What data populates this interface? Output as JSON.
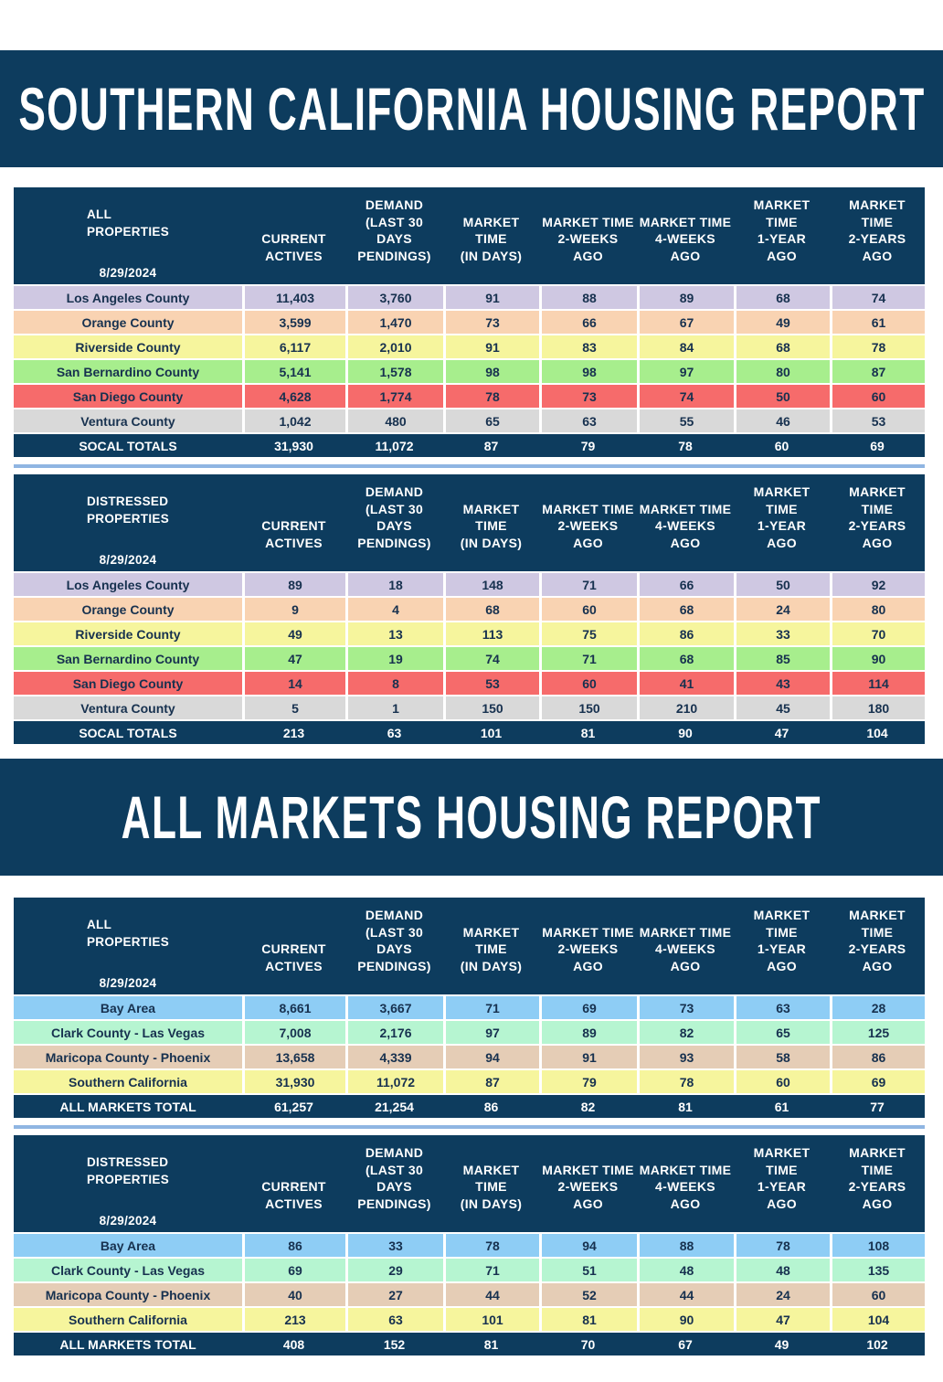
{
  "sections": [
    {
      "title": "SOUTHERN CALIFORNIA HOUSING REPORT",
      "tables": [
        {
          "header": {
            "label": [
              "ALL",
              "PROPERTIES"
            ],
            "date": "8/29/2024",
            "columns": [
              [
                "CURRENT",
                "ACTIVES"
              ],
              [
                "DEMAND",
                "(LAST 30",
                "DAYS",
                "PENDINGS)"
              ],
              [
                "MARKET",
                "TIME",
                "(IN DAYS)"
              ],
              [
                "MARKET TIME",
                "2-WEEKS",
                "AGO"
              ],
              [
                "MARKET TIME",
                "4-WEEKS",
                "AGO"
              ],
              [
                "MARKET",
                "TIME",
                "1-YEAR",
                "AGO"
              ],
              [
                "MARKET",
                "TIME",
                "2-YEARS",
                "AGO"
              ]
            ]
          },
          "rows": [
            {
              "name": "Los Angeles County",
              "color": "#cfc8e2",
              "cells": [
                "11,403",
                "3,760",
                "91",
                "88",
                "89",
                "68",
                "74"
              ]
            },
            {
              "name": "Orange County",
              "color": "#f9d3b2",
              "cells": [
                "3,599",
                "1,470",
                "73",
                "66",
                "67",
                "49",
                "61"
              ]
            },
            {
              "name": "Riverside County",
              "color": "#f6f59d",
              "cells": [
                "6,117",
                "2,010",
                "91",
                "83",
                "84",
                "68",
                "78"
              ]
            },
            {
              "name": "San Bernardino County",
              "color": "#a7ee8d",
              "cells": [
                "5,141",
                "1,578",
                "98",
                "98",
                "97",
                "80",
                "87"
              ]
            },
            {
              "name": "San Diego County",
              "color": "#f66b6b",
              "cells": [
                "4,628",
                "1,774",
                "78",
                "73",
                "74",
                "50",
                "60"
              ]
            },
            {
              "name": "Ventura County",
              "color": "#d9d9d9",
              "cells": [
                "1,042",
                "480",
                "65",
                "63",
                "55",
                "46",
                "53"
              ]
            }
          ],
          "total": {
            "name": "SOCAL TOTALS",
            "cells": [
              "31,930",
              "11,072",
              "87",
              "79",
              "78",
              "60",
              "69"
            ]
          }
        },
        {
          "header": {
            "label": [
              "DISTRESSED",
              "PROPERTIES"
            ],
            "date": "8/29/2024",
            "columns": [
              [
                "CURRENT",
                "ACTIVES"
              ],
              [
                "DEMAND",
                "(LAST 30",
                "DAYS",
                "PENDINGS)"
              ],
              [
                "MARKET",
                "TIME",
                "(IN DAYS)"
              ],
              [
                "MARKET TIME",
                "2-WEEKS",
                "AGO"
              ],
              [
                "MARKET TIME",
                "4-WEEKS",
                "AGO"
              ],
              [
                "MARKET",
                "TIME",
                "1-YEAR",
                "AGO"
              ],
              [
                "MARKET",
                "TIME",
                "2-YEARS",
                "AGO"
              ]
            ]
          },
          "rows": [
            {
              "name": "Los Angeles County",
              "color": "#cfc8e2",
              "cells": [
                "89",
                "18",
                "148",
                "71",
                "66",
                "50",
                "92"
              ]
            },
            {
              "name": "Orange County",
              "color": "#f9d3b2",
              "cells": [
                "9",
                "4",
                "68",
                "60",
                "68",
                "24",
                "80"
              ]
            },
            {
              "name": "Riverside County",
              "color": "#f6f59d",
              "cells": [
                "49",
                "13",
                "113",
                "75",
                "86",
                "33",
                "70"
              ]
            },
            {
              "name": "San Bernardino County",
              "color": "#a7ee8d",
              "cells": [
                "47",
                "19",
                "74",
                "71",
                "68",
                "85",
                "90"
              ]
            },
            {
              "name": "San Diego County",
              "color": "#f66b6b",
              "cells": [
                "14",
                "8",
                "53",
                "60",
                "41",
                "43",
                "114"
              ]
            },
            {
              "name": "Ventura County",
              "color": "#d9d9d9",
              "cells": [
                "5",
                "1",
                "150",
                "150",
                "210",
                "45",
                "180"
              ]
            }
          ],
          "total": {
            "name": "SOCAL TOTALS",
            "cells": [
              "213",
              "63",
              "101",
              "81",
              "90",
              "47",
              "104"
            ]
          }
        }
      ]
    },
    {
      "title": "ALL MARKETS HOUSING REPORT",
      "tables": [
        {
          "header": {
            "label": [
              "ALL",
              "PROPERTIES"
            ],
            "date": "8/29/2024",
            "columns": [
              [
                "CURRENT",
                "ACTIVES"
              ],
              [
                "DEMAND",
                "(LAST 30",
                "DAYS",
                "PENDINGS)"
              ],
              [
                "MARKET",
                "TIME",
                "(IN DAYS)"
              ],
              [
                "MARKET TIME",
                "2-WEEKS",
                "AGO"
              ],
              [
                "MARKET TIME",
                "4-WEEKS",
                "AGO"
              ],
              [
                "MARKET",
                "TIME",
                "1-YEAR",
                "AGO"
              ],
              [
                "MARKET",
                "TIME",
                "2-YEARS",
                "AGO"
              ]
            ]
          },
          "rows": [
            {
              "name": "Bay Area",
              "color": "#8ecdf5",
              "cells": [
                "8,661",
                "3,667",
                "71",
                "69",
                "73",
                "63",
                "28"
              ]
            },
            {
              "name": "Clark County - Las Vegas",
              "color": "#b6f5d1",
              "cells": [
                "7,008",
                "2,176",
                "97",
                "89",
                "82",
                "65",
                "125"
              ]
            },
            {
              "name": "Maricopa County - Phoenix",
              "color": "#e5cdb6",
              "cells": [
                "13,658",
                "4,339",
                "94",
                "91",
                "93",
                "58",
                "86"
              ]
            },
            {
              "name": "Southern California",
              "color": "#f6f59d",
              "cells": [
                "31,930",
                "11,072",
                "87",
                "79",
                "78",
                "60",
                "69"
              ]
            }
          ],
          "total": {
            "name": "ALL MARKETS TOTAL",
            "cells": [
              "61,257",
              "21,254",
              "86",
              "82",
              "81",
              "61",
              "77"
            ]
          }
        },
        {
          "header": {
            "label": [
              "DISTRESSED",
              "PROPERTIES"
            ],
            "date": "8/29/2024",
            "columns": [
              [
                "CURRENT",
                "ACTIVES"
              ],
              [
                "DEMAND",
                "(LAST 30",
                "DAYS",
                "PENDINGS)"
              ],
              [
                "MARKET",
                "TIME",
                "(IN DAYS)"
              ],
              [
                "MARKET TIME",
                "2-WEEKS",
                "AGO"
              ],
              [
                "MARKET TIME",
                "4-WEEKS",
                "AGO"
              ],
              [
                "MARKET",
                "TIME",
                "1-YEAR",
                "AGO"
              ],
              [
                "MARKET",
                "TIME",
                "2-YEARS",
                "AGO"
              ]
            ]
          },
          "rows": [
            {
              "name": "Bay Area",
              "color": "#8ecdf5",
              "cells": [
                "86",
                "33",
                "78",
                "94",
                "88",
                "78",
                "108"
              ]
            },
            {
              "name": "Clark County - Las Vegas",
              "color": "#b6f5d1",
              "cells": [
                "69",
                "29",
                "71",
                "51",
                "48",
                "48",
                "135"
              ]
            },
            {
              "name": "Maricopa County - Phoenix",
              "color": "#e5cdb6",
              "cells": [
                "40",
                "27",
                "44",
                "52",
                "44",
                "24",
                "60"
              ]
            },
            {
              "name": "Southern California",
              "color": "#f6f59d",
              "cells": [
                "213",
                "63",
                "101",
                "81",
                "90",
                "47",
                "104"
              ]
            }
          ],
          "total": {
            "name": "ALL MARKETS TOTAL",
            "cells": [
              "408",
              "152",
              "81",
              "70",
              "67",
              "49",
              "102"
            ]
          }
        }
      ]
    }
  ]
}
